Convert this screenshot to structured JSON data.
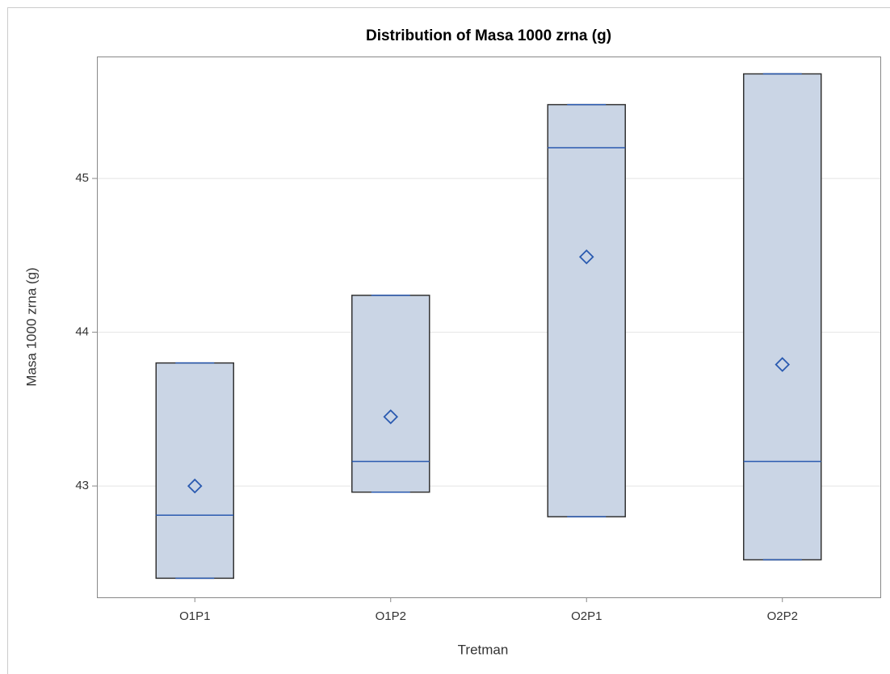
{
  "chart_data": {
    "type": "box",
    "title": "Distribution of Masa 1000 zrna (g)",
    "x_label": "Tretman",
    "y_label": "Masa 1000 zrna (g)",
    "categories": [
      "O1P1",
      "O1P2",
      "O2P1",
      "O2P2"
    ],
    "min": [
      42.4,
      42.96,
      42.8,
      42.52
    ],
    "q1": [
      42.4,
      42.96,
      42.8,
      42.52
    ],
    "median": [
      42.81,
      43.16,
      45.2,
      43.16
    ],
    "q3": [
      43.8,
      44.24,
      45.48,
      45.68
    ],
    "max": [
      43.8,
      44.24,
      45.48,
      45.68
    ],
    "mean": [
      43.0,
      43.45,
      44.49,
      43.79
    ],
    "color": "#cad5e5",
    "line_color": "#2a5ab0",
    "ylim": [
      42.276,
      45.793
    ],
    "yticks": [
      43,
      44,
      45
    ],
    "grid": true
  }
}
